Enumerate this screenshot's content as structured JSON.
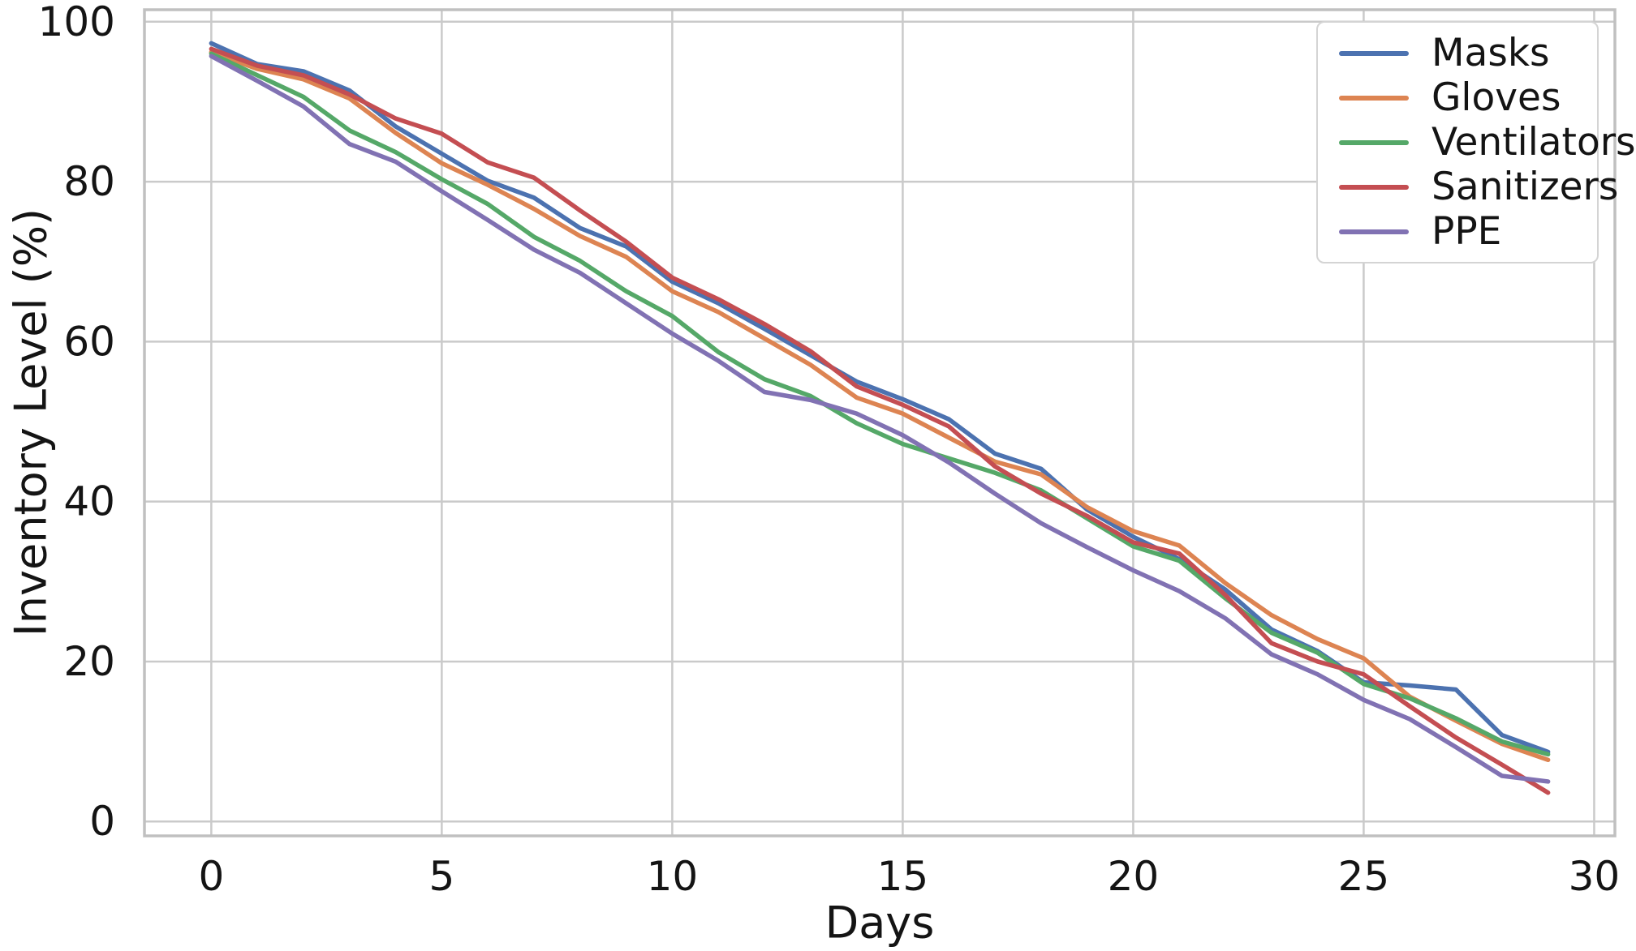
{
  "figure": {
    "background": "#ffffff",
    "grid_color": "#cacaca",
    "spine_color": "#c0c0c0",
    "text_color": "#141414",
    "line_width": 5.5
  },
  "chart_data": {
    "type": "line",
    "title": "",
    "xlabel": "Days",
    "ylabel": "Inventory Level (%)",
    "grid": true,
    "legend_position": "upper-right",
    "xlim": [
      -1.45,
      30.45
    ],
    "ylim": [
      -1.8,
      101.5
    ],
    "x_ticks": [
      0,
      5,
      10,
      15,
      20,
      25,
      30
    ],
    "y_ticks": [
      0,
      20,
      40,
      60,
      80,
      100
    ],
    "x": [
      0,
      1,
      2,
      3,
      4,
      5,
      6,
      7,
      8,
      9,
      10,
      11,
      12,
      13,
      14,
      15,
      16,
      17,
      18,
      19,
      20,
      21,
      22,
      23,
      24,
      25,
      26,
      27,
      28,
      29
    ],
    "series": [
      {
        "name": "Masks",
        "color": "#4C72B0",
        "values": [
          97.3,
          94.7,
          93.8,
          91.4,
          86.9,
          83.5,
          80.1,
          78.0,
          74.2,
          71.9,
          67.5,
          64.8,
          61.6,
          58.3,
          55.0,
          52.8,
          50.3,
          46.0,
          44.1,
          39.0,
          35.6,
          32.8,
          29.0,
          24.0,
          21.3,
          17.4,
          17.0,
          16.5,
          10.8,
          8.7
        ]
      },
      {
        "name": "Gloves",
        "color": "#DD8452",
        "values": [
          96.2,
          94.1,
          92.8,
          90.4,
          86.1,
          82.3,
          79.6,
          76.6,
          73.2,
          70.6,
          66.3,
          63.7,
          60.4,
          57.1,
          53.0,
          51.0,
          48.0,
          45.0,
          43.4,
          39.3,
          36.3,
          34.5,
          29.8,
          25.8,
          22.8,
          20.4,
          15.6,
          12.6,
          9.7,
          7.7
        ]
      },
      {
        "name": "Ventilators",
        "color": "#55A868",
        "values": [
          96.0,
          93.3,
          90.6,
          86.4,
          83.7,
          80.3,
          77.2,
          73.1,
          70.1,
          66.3,
          63.2,
          58.7,
          55.3,
          53.2,
          49.8,
          47.2,
          45.4,
          43.6,
          41.4,
          37.9,
          34.4,
          32.6,
          27.9,
          23.6,
          21.1,
          17.2,
          15.4,
          12.9,
          10.0,
          8.4
        ]
      },
      {
        "name": "Sanitizers",
        "color": "#C44E52",
        "values": [
          96.6,
          94.5,
          93.3,
          90.9,
          87.9,
          86.0,
          82.4,
          80.5,
          76.4,
          72.5,
          68.0,
          65.3,
          62.2,
          58.8,
          54.4,
          52.1,
          49.4,
          44.4,
          41.0,
          38.2,
          34.9,
          33.5,
          28.3,
          22.3,
          20.0,
          18.4,
          14.4,
          10.5,
          7.1,
          3.6
        ]
      },
      {
        "name": "PPE",
        "color": "#8172B3",
        "values": [
          95.7,
          92.6,
          89.4,
          84.7,
          82.5,
          78.8,
          75.2,
          71.5,
          68.6,
          64.8,
          61.0,
          57.6,
          53.7,
          52.7,
          51.0,
          48.3,
          44.9,
          41.0,
          37.3,
          34.3,
          31.4,
          28.8,
          25.4,
          20.9,
          18.4,
          15.2,
          12.8,
          9.3,
          5.7,
          5.0
        ]
      }
    ]
  }
}
